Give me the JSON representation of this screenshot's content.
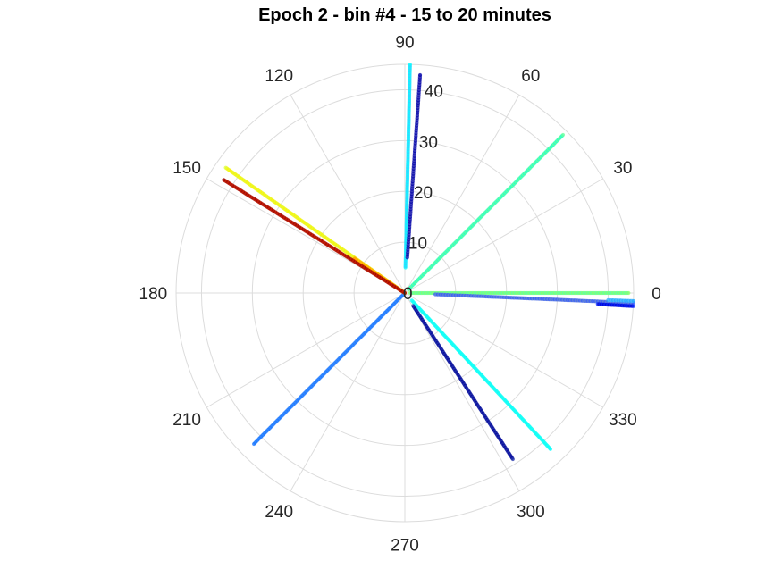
{
  "title": "Epoch 2 - bin #4 - 15 to 20 minutes",
  "chart_data": {
    "type": "scatter",
    "projection": "polar",
    "title": "Epoch 2 - bin #4 - 15 to 20 minutes",
    "theta_unit": "degrees",
    "theta_ticks": [
      0,
      30,
      60,
      90,
      120,
      150,
      180,
      210,
      240,
      270,
      300,
      330
    ],
    "r_ticks": [
      0,
      10,
      20,
      30,
      40
    ],
    "rlim": [
      0,
      45
    ],
    "grid": true,
    "colormap": "jet",
    "series": [
      {
        "theta": 88.7,
        "r_range": [
          5,
          45
        ],
        "colors": [
          "#00ffff",
          "#33ccff"
        ]
      },
      {
        "theta": 86.0,
        "r_range": [
          7,
          43
        ],
        "colors": [
          "#0000aa",
          "#4444bb"
        ]
      },
      {
        "theta": 45.0,
        "r_range": [
          1,
          44
        ],
        "colors": [
          "#66ff99",
          "#22ffcc"
        ]
      },
      {
        "theta": 0.0,
        "r_range": [
          1,
          44
        ],
        "colors": [
          "#88ff66",
          "#55ffaa"
        ]
      },
      {
        "theta": -2.5,
        "r_range": [
          6,
          45
        ],
        "colors": [
          "#3355ff",
          "#6688cc"
        ]
      },
      {
        "theta": -3.3,
        "r_range": [
          38,
          45
        ],
        "colors": [
          "#0022ff",
          "#0000cc"
        ]
      },
      {
        "theta": -2.0,
        "r_range": [
          40,
          45
        ],
        "colors": [
          "#22aaff",
          "#55bbff"
        ]
      },
      {
        "theta": -47.0,
        "r_range": [
          2,
          42
        ],
        "colors": [
          "#00ffff",
          "#22ffee"
        ]
      },
      {
        "theta": -57.0,
        "r_range": [
          3,
          39
        ],
        "colors": [
          "#2233aa",
          "#000099"
        ]
      },
      {
        "theta": -135.0,
        "r_range": [
          0,
          42
        ],
        "colors": [
          "#1a75ff",
          "#3388ff"
        ]
      },
      {
        "theta": 145.0,
        "r_range": [
          0,
          43
        ],
        "colors": [
          "#ddff33",
          "#ffee00"
        ]
      },
      {
        "theta": 145.5,
        "r_range": [
          0,
          12
        ],
        "colors": [
          "#ff9900",
          "#ffcc00"
        ]
      },
      {
        "theta": 148.0,
        "r_range": [
          0,
          42
        ],
        "colors": [
          "#990000",
          "#cc2200"
        ]
      }
    ]
  }
}
